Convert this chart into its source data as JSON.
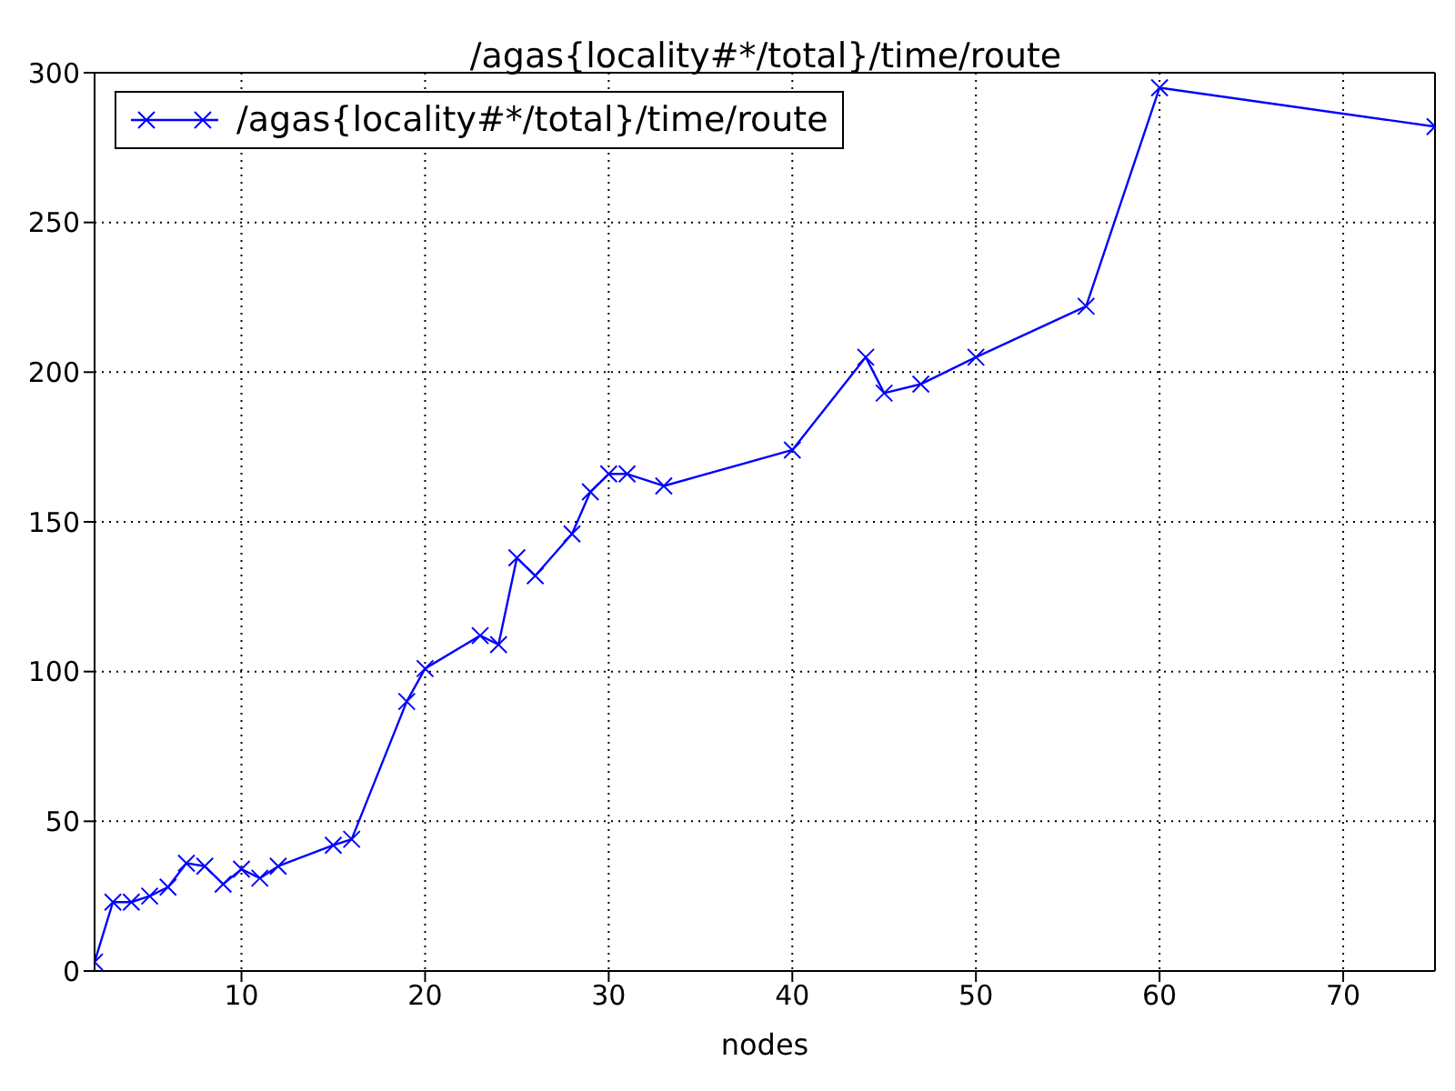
{
  "chart_data": {
    "type": "line",
    "title": "/agas{locality#*/total}/time/route",
    "xlabel": "nodes",
    "x": [
      2,
      3,
      4,
      5,
      6,
      7,
      8,
      9,
      10,
      11,
      12,
      15,
      16,
      19,
      20,
      23,
      24,
      25,
      26,
      28,
      29,
      30,
      31,
      33,
      40,
      44,
      45,
      47,
      50,
      56,
      60,
      75
    ],
    "series": [
      {
        "name": "/agas{locality#*/total}/time/route",
        "color": "#0000ff",
        "values": [
          3,
          23,
          23,
          25,
          28,
          36,
          35,
          29,
          34,
          31,
          35,
          42,
          44,
          90,
          101,
          112,
          109,
          138,
          132,
          146,
          160,
          166,
          166,
          162,
          174,
          205,
          193,
          196,
          205,
          222,
          295,
          282
        ]
      }
    ],
    "xlim": [
      2,
      75
    ],
    "xticks": [
      10,
      20,
      30,
      40,
      50,
      60,
      70
    ],
    "ylim": [
      0,
      300
    ],
    "yticks": [
      0,
      50,
      100,
      150,
      200,
      250,
      300
    ],
    "grid": true,
    "legend": "top left",
    "marker": "cross",
    "line_style": "solid"
  }
}
